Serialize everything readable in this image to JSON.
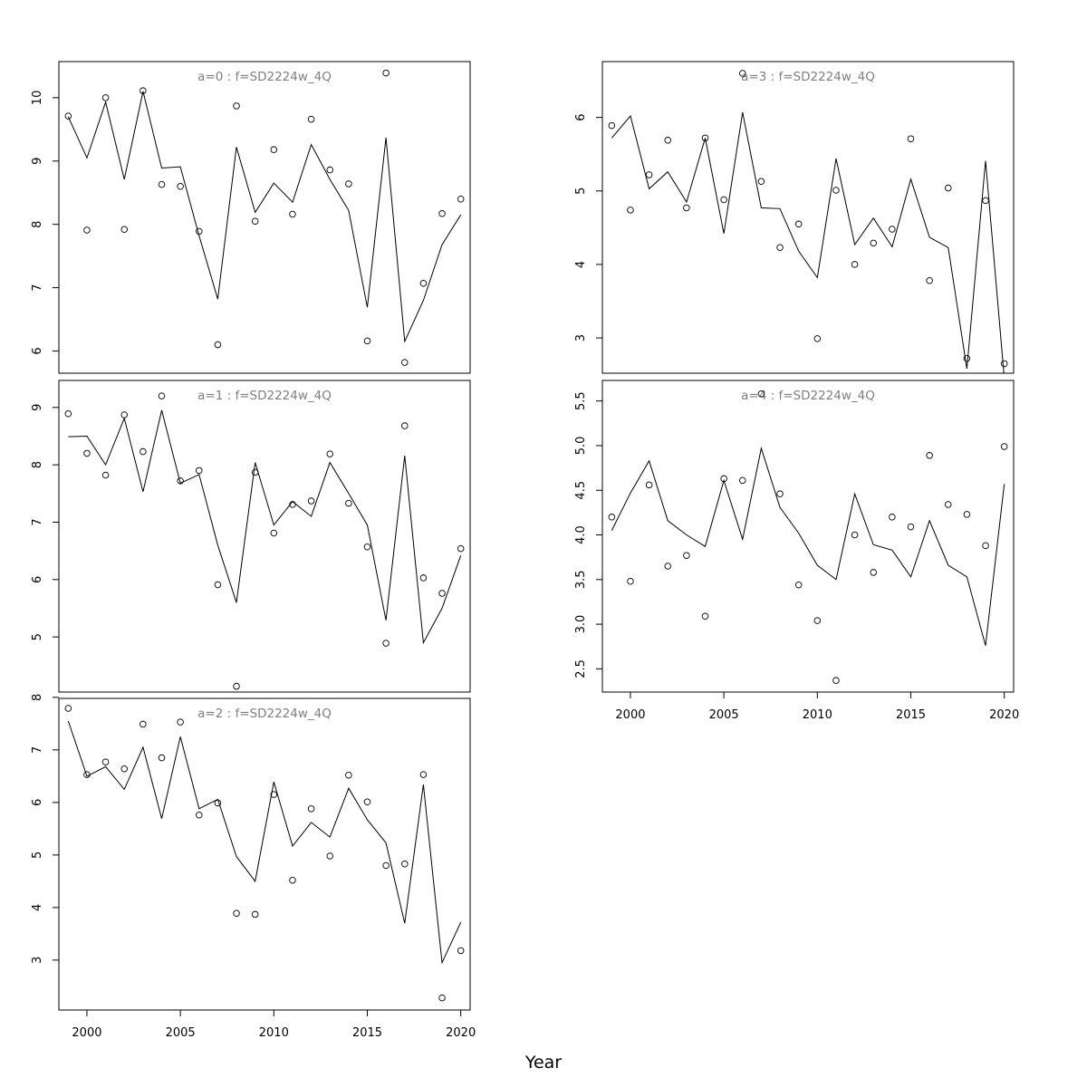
{
  "colors": {
    "line": "#000000",
    "points": "#000000",
    "title": "#7f7f7f",
    "frame": "#000000"
  },
  "x_axis_label": "Year",
  "chart_data": [
    {
      "type": "line",
      "title": "a=0  :  f=SD2224w_4Q",
      "x": [
        1999,
        2000,
        2001,
        2002,
        2003,
        2004,
        2005,
        2006,
        2007,
        2008,
        2009,
        2010,
        2011,
        2012,
        2013,
        2014,
        2015,
        2016,
        2017,
        2018,
        2019,
        2020
      ],
      "series": [
        {
          "kind": "line",
          "values": [
            9.7,
            9.05,
            9.93,
            8.71,
            10.1,
            8.89,
            8.91,
            7.82,
            6.82,
            9.22,
            8.19,
            8.65,
            8.35,
            9.26,
            8.71,
            8.22,
            6.69,
            9.37,
            6.15,
            6.8,
            7.68,
            8.15
          ]
        },
        {
          "kind": "points",
          "values": [
            9.71,
            7.91,
            10.0,
            7.92,
            10.11,
            8.63,
            8.6,
            7.89,
            6.1,
            9.87,
            8.05,
            9.18,
            8.16,
            9.66,
            8.86,
            8.64,
            6.16,
            10.39,
            5.82,
            7.07,
            8.17,
            8.4
          ]
        }
      ],
      "xlim": [
        1998.5,
        2020.5
      ],
      "ylim": [
        5.65,
        10.57
      ],
      "yticks": [
        6,
        7,
        8,
        9,
        10
      ],
      "ytick_labels": [
        "6",
        "7",
        "8",
        "9",
        "10"
      ],
      "xticks": [
        2000,
        2005,
        2010,
        2015,
        2020
      ],
      "xtick_labels": [],
      "grid": false
    },
    {
      "type": "line",
      "title": "a=1  :  f=SD2224w_4Q",
      "x": [
        1999,
        2000,
        2001,
        2002,
        2003,
        2004,
        2005,
        2006,
        2007,
        2008,
        2009,
        2010,
        2011,
        2012,
        2013,
        2014,
        2015,
        2016,
        2017,
        2018,
        2019,
        2020
      ],
      "series": [
        {
          "kind": "line",
          "values": [
            8.49,
            8.5,
            8.0,
            8.81,
            7.53,
            8.95,
            7.68,
            7.83,
            6.6,
            5.6,
            8.04,
            6.95,
            7.36,
            7.1,
            8.04,
            7.5,
            6.95,
            5.29,
            8.16,
            4.9,
            5.5,
            6.42
          ]
        },
        {
          "kind": "points",
          "values": [
            8.89,
            8.2,
            7.82,
            8.87,
            8.23,
            9.2,
            7.72,
            7.9,
            5.91,
            4.14,
            7.87,
            6.81,
            7.31,
            7.37,
            8.19,
            7.33,
            6.57,
            4.89,
            8.68,
            6.03,
            5.76,
            6.54
          ]
        }
      ],
      "xlim": [
        1998.5,
        2020.5
      ],
      "ylim": [
        4.04,
        9.47
      ],
      "yticks": [
        5,
        6,
        7,
        8,
        9
      ],
      "ytick_labels": [
        "5",
        "6",
        "7",
        "8",
        "9"
      ],
      "xticks": [
        2000,
        2005,
        2010,
        2015,
        2020
      ],
      "xtick_labels": [],
      "grid": false
    },
    {
      "type": "line",
      "title": "a=2  :  f=SD2224w_4Q",
      "x": [
        1999,
        2000,
        2001,
        2002,
        2003,
        2004,
        2005,
        2006,
        2007,
        2008,
        2009,
        2010,
        2011,
        2012,
        2013,
        2014,
        2015,
        2016,
        2017,
        2018,
        2019,
        2020
      ],
      "series": [
        {
          "kind": "line",
          "values": [
            7.55,
            6.5,
            6.68,
            6.25,
            7.05,
            5.69,
            7.25,
            5.88,
            6.06,
            4.97,
            4.5,
            6.39,
            5.17,
            5.62,
            5.34,
            6.27,
            5.67,
            5.23,
            3.7,
            6.34,
            2.95,
            3.72
          ]
        },
        {
          "kind": "points",
          "values": [
            7.79,
            6.53,
            6.77,
            6.64,
            7.49,
            6.85,
            7.53,
            5.76,
            5.99,
            3.89,
            3.87,
            6.15,
            4.52,
            5.88,
            4.98,
            6.52,
            6.01,
            4.8,
            4.83,
            6.53,
            2.28,
            3.18
          ]
        }
      ],
      "xlim": [
        1998.5,
        2020.5
      ],
      "ylim": [
        2.05,
        7.98
      ],
      "yticks": [
        3,
        4,
        5,
        6,
        7,
        8
      ],
      "ytick_labels": [
        "3",
        "4",
        "5",
        "6",
        "7",
        "8"
      ],
      "xticks": [
        2000,
        2005,
        2010,
        2015,
        2020
      ],
      "xtick_labels": [
        "2000",
        "2005",
        "2010",
        "2015",
        "2020"
      ],
      "grid": false
    },
    {
      "type": "line",
      "title": "a=3  :  f=SD2224w_4Q",
      "x": [
        1999,
        2000,
        2001,
        2002,
        2003,
        2004,
        2005,
        2006,
        2007,
        2008,
        2009,
        2010,
        2011,
        2012,
        2013,
        2014,
        2015,
        2016,
        2017,
        2018,
        2019,
        2020
      ],
      "series": [
        {
          "kind": "line",
          "values": [
            5.72,
            6.02,
            5.03,
            5.26,
            4.85,
            5.72,
            4.42,
            6.07,
            4.77,
            4.76,
            4.18,
            3.82,
            5.44,
            4.27,
            4.63,
            4.24,
            5.16,
            4.37,
            4.23,
            2.58,
            5.41,
            2.45
          ]
        },
        {
          "kind": "points",
          "values": [
            5.89,
            4.74,
            5.22,
            5.69,
            4.77,
            5.72,
            4.88,
            6.6,
            5.13,
            4.23,
            4.55,
            2.99,
            5.01,
            4.0,
            4.29,
            4.48,
            5.71,
            3.78,
            5.04,
            2.72,
            4.87,
            2.65
          ]
        }
      ],
      "xlim": [
        1998.5,
        2020.5
      ],
      "ylim": [
        2.52,
        6.76
      ],
      "yticks": [
        3,
        4,
        5,
        6
      ],
      "ytick_labels": [
        "3",
        "4",
        "5",
        "6"
      ],
      "xticks": [
        2000,
        2005,
        2010,
        2015,
        2020
      ],
      "xtick_labels": [],
      "grid": false
    },
    {
      "type": "line",
      "title": "a=4  :  f=SD2224w_4Q",
      "x": [
        1999,
        2000,
        2001,
        2002,
        2003,
        2004,
        2005,
        2006,
        2007,
        2008,
        2009,
        2010,
        2011,
        2012,
        2013,
        2014,
        2015,
        2016,
        2017,
        2018,
        2019,
        2020
      ],
      "series": [
        {
          "kind": "line",
          "values": [
            4.05,
            4.47,
            4.83,
            4.16,
            4.0,
            3.87,
            4.61,
            3.95,
            4.97,
            4.31,
            4.02,
            3.66,
            3.5,
            4.46,
            3.89,
            3.83,
            3.53,
            4.16,
            3.66,
            3.53,
            2.76,
            4.57
          ]
        },
        {
          "kind": "points",
          "values": [
            4.2,
            3.48,
            4.56,
            3.65,
            3.77,
            3.09,
            4.63,
            4.61,
            5.58,
            4.46,
            3.44,
            3.04,
            2.37,
            4.0,
            3.58,
            4.2,
            4.09,
            4.89,
            4.34,
            4.23,
            3.88,
            4.99
          ]
        }
      ],
      "xlim": [
        1998.5,
        2020.5
      ],
      "ylim": [
        2.24,
        5.73
      ],
      "yticks": [
        2.5,
        3.0,
        3.5,
        4.0,
        4.5,
        5.0,
        5.5
      ],
      "ytick_labels": [
        "2.5",
        "3.0",
        "3.5",
        "4.0",
        "4.5",
        "5.0",
        "5.5"
      ],
      "xticks": [
        2000,
        2005,
        2010,
        2015,
        2020
      ],
      "xtick_labels": [
        "2000",
        "2005",
        "2010",
        "2015",
        "2020"
      ],
      "grid": false
    }
  ]
}
